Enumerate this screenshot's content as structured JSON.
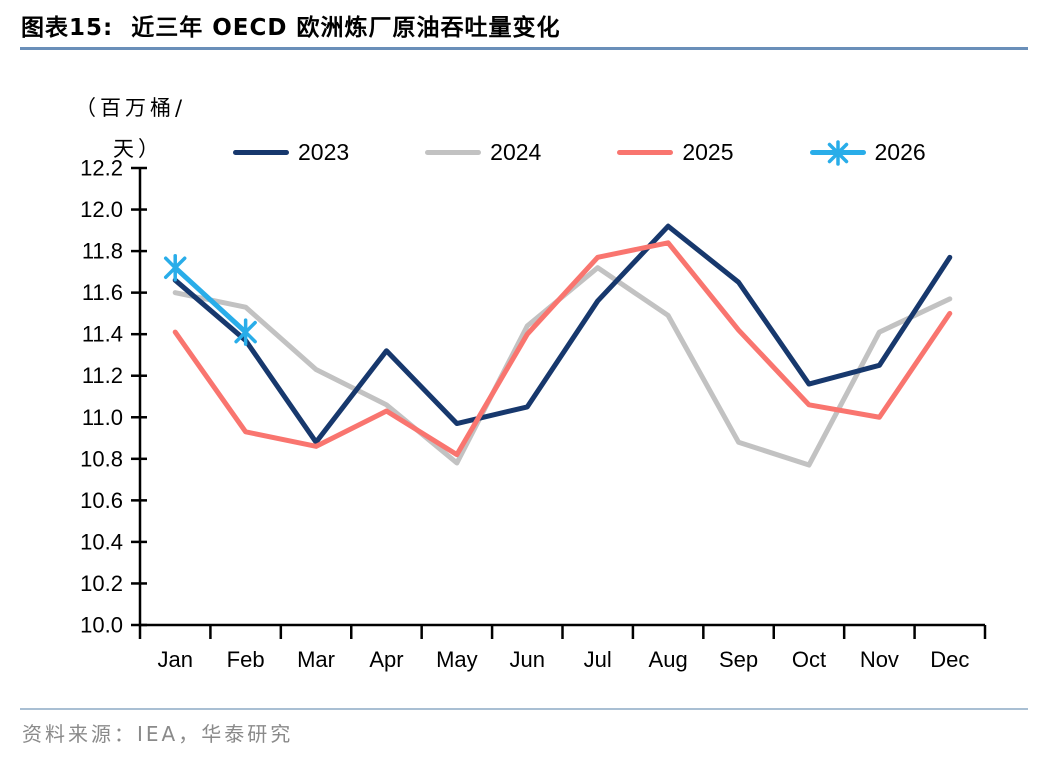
{
  "header": {
    "title": "图表15:  近三年 OECD 欧洲炼厂原油吞吐量变化"
  },
  "footer": {
    "source": "资料来源：IEA，华泰研究"
  },
  "colors": {
    "title_underline": "#6A8FB9",
    "footer_line": "#A9BFD3",
    "source_text": "#8A8A8A",
    "axis": "#000000"
  },
  "chart_data": {
    "type": "line",
    "title": "近三年OECD欧洲炼厂原油吞吐量变化",
    "ylabel": "（百万桶/天）",
    "unit_lines": [
      "（百万桶/",
      "天）"
    ],
    "categories": [
      "Jan",
      "Feb",
      "Mar",
      "Apr",
      "May",
      "Jun",
      "Jul",
      "Aug",
      "Sep",
      "Oct",
      "Nov",
      "Dec"
    ],
    "ylim": [
      10.0,
      12.2
    ],
    "ytick_step": 0.2,
    "grid": false,
    "legend_position": "top",
    "draw_order": [
      1,
      0,
      2,
      3
    ],
    "series": [
      {
        "name": "2023",
        "color": "#17386D",
        "marker": "none",
        "values": [
          11.66,
          11.37,
          10.88,
          11.32,
          10.97,
          11.05,
          11.56,
          11.92,
          11.65,
          11.16,
          11.25,
          11.77
        ]
      },
      {
        "name": "2024",
        "color": "#C2C2C2",
        "marker": "none",
        "values": [
          11.6,
          11.53,
          11.23,
          11.06,
          10.78,
          11.44,
          11.72,
          11.49,
          10.88,
          10.77,
          11.41,
          11.57
        ]
      },
      {
        "name": "2025",
        "color": "#F9756F",
        "marker": "none",
        "values": [
          11.41,
          10.93,
          10.86,
          11.03,
          10.82,
          11.4,
          11.77,
          11.84,
          11.42,
          11.06,
          11.0,
          11.5
        ]
      },
      {
        "name": "2026",
        "color": "#29ADE9",
        "marker": "asterisk",
        "values": [
          11.72,
          11.41,
          null,
          null,
          null,
          null,
          null,
          null,
          null,
          null,
          null,
          null
        ]
      }
    ]
  }
}
